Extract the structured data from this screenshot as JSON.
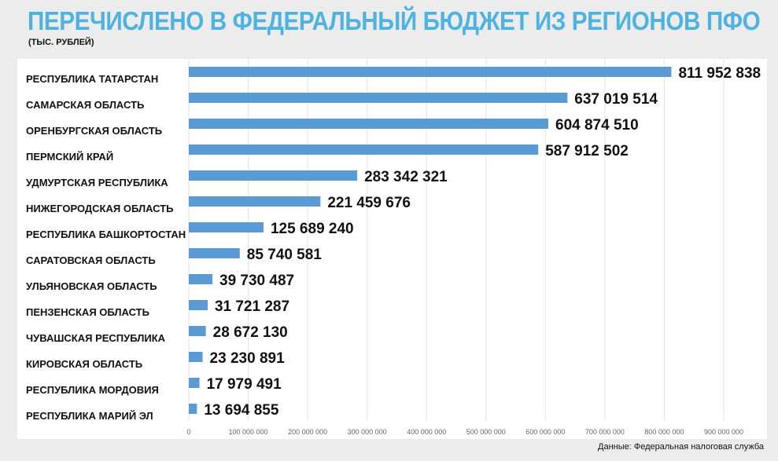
{
  "chart_data": {
    "type": "bar",
    "orientation": "horizontal",
    "title": "ПЕРЕЧИСЛЕНО В ФЕДЕРАЛЬНЫЙ БЮДЖЕТ ИЗ РЕГИОНОВ ПФО",
    "subtitle": "(ТЫС. РУБЛЕЙ)",
    "source": "Данные: Федеральная налоговая служба",
    "categories": [
      "РЕСПУБЛИКА ТАТАРСТАН",
      "САМАРСКАЯ ОБЛАСТЬ",
      "ОРЕНБУРГСКАЯ ОБЛАСТЬ",
      "ПЕРМСКИЙ КРАЙ",
      "УДМУРТСКАЯ РЕСПУБЛИКА",
      "НИЖЕГОРОДСКАЯ ОБЛАСТЬ",
      "РЕСПУБЛИКА БАШКОРТОСТАН",
      "САРАТОВСКАЯ ОБЛАСТЬ",
      "УЛЬЯНОВСКАЯ ОБЛАСТЬ",
      "ПЕНЗЕНСКАЯ ОБЛАСТЬ",
      "ЧУВАШСКАЯ РЕСПУБЛИКА",
      "КИРОВСКАЯ ОБЛАСТЬ",
      "РЕСПУБЛИКА МОРДОВИЯ",
      "РЕСПУБЛИКА МАРИЙ ЭЛ"
    ],
    "values": [
      811952838,
      637019514,
      604874510,
      587912502,
      283342321,
      221459676,
      125689240,
      85740581,
      39730487,
      31721287,
      28672130,
      23230891,
      17979491,
      13694855
    ],
    "value_labels": [
      "811 952 838",
      "637 019 514",
      "604 874 510",
      "587 912 502",
      "283 342 321",
      "221 459 676",
      "125 689 240",
      "85 740 581",
      "39 730 487",
      "31 721 287",
      "28 672 130",
      "23 230 891",
      "17 979 491",
      "13 694 855"
    ],
    "xlim": [
      0,
      900000000
    ],
    "x_ticks": [
      "0",
      "100 000 000",
      "200 000 000",
      "300 000 000",
      "400 000 000",
      "500 000 000",
      "600 000 000",
      "700 000 000",
      "800 000 000",
      "900 000 000"
    ],
    "grid": true,
    "bar_color": "#5b9bd5",
    "highlight_label_color": "#c0272d"
  }
}
